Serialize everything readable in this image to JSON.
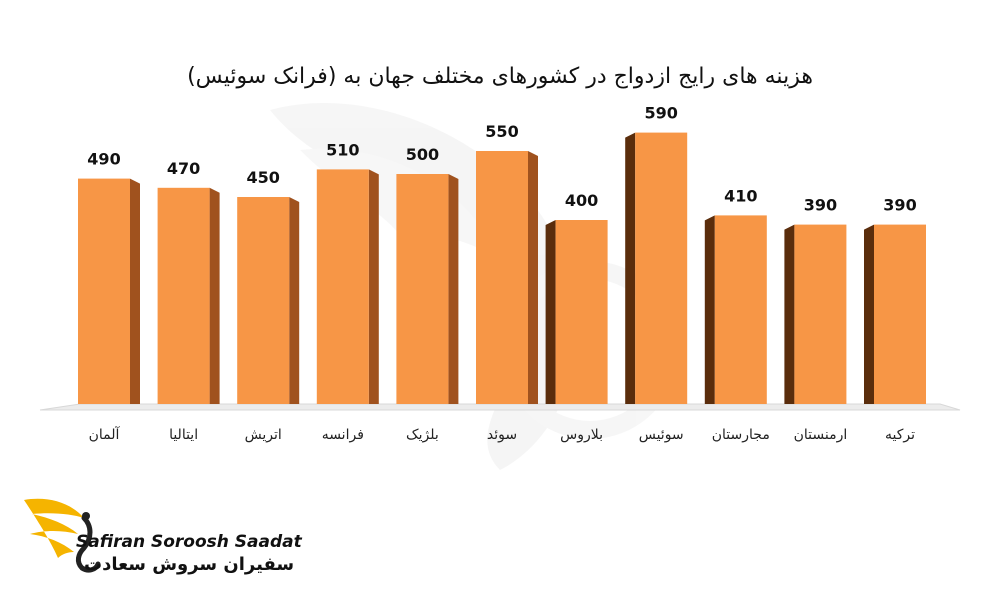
{
  "colors": {
    "bar_front": "#F79646",
    "bar_side": "#A0521E",
    "bar_side_dark": "#5A2D0C",
    "floor": "#ECECEC",
    "accent_gold": "#F5B400"
  },
  "chart_data": {
    "type": "bar",
    "title": "هزینه های رایج ازدواج در کشورهای مختلف جهان به (فرانک سوئیس)",
    "categories": [
      "آلمان",
      "ایتالیا",
      "اتریش",
      "فرانسه",
      "بلژیک",
      "سوئد",
      "بلاروس",
      "سوئیس",
      "مجارستان",
      "ارمنستان",
      "ترکیه"
    ],
    "values": [
      490,
      470,
      450,
      510,
      500,
      550,
      400,
      590,
      410,
      390,
      390
    ],
    "ylim": [
      0,
      650
    ],
    "grid": false,
    "style": "3d"
  },
  "logo": {
    "name_en": "Safiran Soroosh Saadat",
    "name_fa": "سفیران سروش سعادت",
    "icon": "golden-wing-swan-icon"
  }
}
